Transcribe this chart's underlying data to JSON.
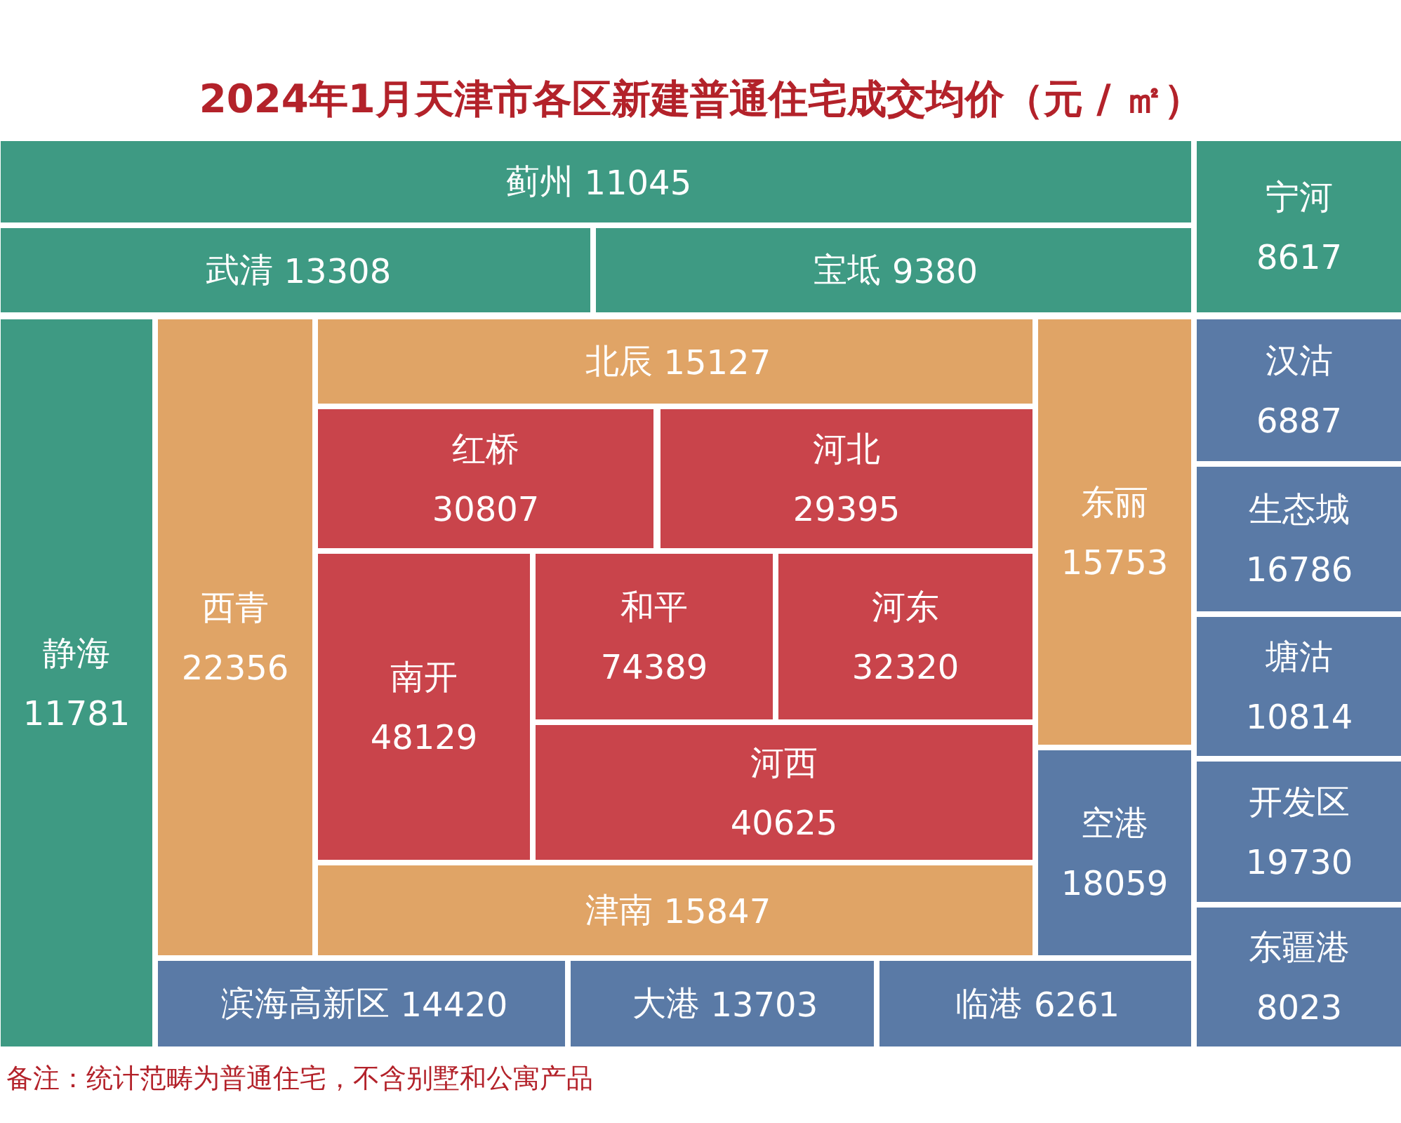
{
  "chart_data": {
    "type": "other",
    "title": "2024年1月天津市各区新建普通住宅成交均价（元 / ㎡）",
    "categories": [
      "蓟州",
      "武清",
      "宝坻",
      "宁河",
      "静海",
      "西青",
      "北辰",
      "红桥",
      "河北",
      "东丽",
      "南开",
      "和平",
      "河东",
      "河西",
      "津南",
      "空港",
      "滨海高新区",
      "大港",
      "临港",
      "汉沽",
      "生态城",
      "塘沽",
      "开发区",
      "东疆港"
    ],
    "values": [
      11045,
      13308,
      9380,
      8617,
      11781,
      22356,
      15127,
      30807,
      29395,
      15753,
      48129,
      74389,
      32320,
      40625,
      15847,
      18059,
      14420,
      13703,
      6261,
      6887,
      16786,
      10814,
      19730,
      8023
    ],
    "colors": [
      "#3e9a83",
      "#3e9a83",
      "#3e9a83",
      "#3e9a83",
      "#3e9a83",
      "#e0a466",
      "#e0a466",
      "#c9444b",
      "#c9444b",
      "#e0a466",
      "#c9444b",
      "#c9444b",
      "#c9444b",
      "#c9444b",
      "#e0a466",
      "#5a7aa6",
      "#5a7aa6",
      "#5a7aa6",
      "#5a7aa6",
      "#5a7aa6",
      "#5a7aa6",
      "#5a7aa6",
      "#5a7aa6",
      "#5a7aa6"
    ],
    "data_labels": true,
    "annotations": [
      "备注：统计范畴为普通住宅，不含别墅和公寓产品"
    ]
  }
}
